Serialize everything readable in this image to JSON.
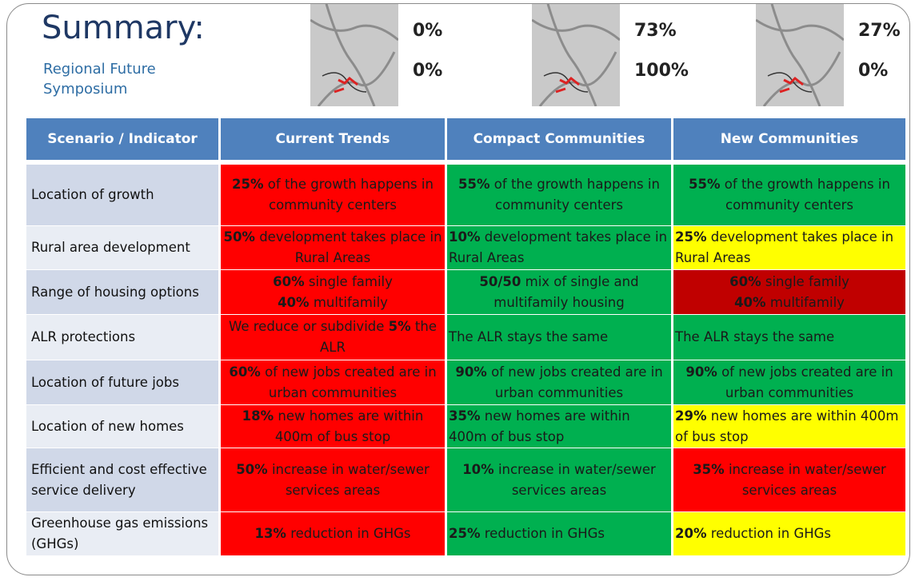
{
  "header": {
    "title": "Summary:",
    "subtitle": "Regional Future Symposium"
  },
  "maps": [
    {
      "top": "0%",
      "bottom": "0%"
    },
    {
      "top": "73%",
      "bottom": "100%"
    },
    {
      "top": "27%",
      "bottom": "0%"
    }
  ],
  "table": {
    "columns": [
      "Scenario / Indicator",
      "Current Trends",
      "Compact Communities",
      "New Communities"
    ],
    "rows": [
      {
        "label": "Location of growth",
        "cells": [
          {
            "color": "#ff0000",
            "align": "center",
            "parts": [
              {
                "text": "25%",
                "bold": true
              },
              {
                "text": " of the growth happens in community centers"
              }
            ]
          },
          {
            "color": "#00b050",
            "align": "center",
            "parts": [
              {
                "text": "55%",
                "bold": true
              },
              {
                "text": " of the growth happens in community centers"
              }
            ]
          },
          {
            "color": "#00b050",
            "align": "center",
            "parts": [
              {
                "text": "55%",
                "bold": true
              },
              {
                "text": " of the growth happens in community centers"
              }
            ]
          }
        ]
      },
      {
        "label": "Rural area development",
        "cells": [
          {
            "color": "#ff0000",
            "align": "center",
            "parts": [
              {
                "text": "50%",
                "bold": true
              },
              {
                "text": " development takes place in Rural Areas"
              }
            ]
          },
          {
            "color": "#00b050",
            "align": "left",
            "parts": [
              {
                "text": "10%",
                "bold": true
              },
              {
                "text": " development takes place in Rural Areas"
              }
            ]
          },
          {
            "color": "#ffff00",
            "align": "left",
            "parts": [
              {
                "text": "25%",
                "bold": true
              },
              {
                "text": " development takes place in Rural Areas"
              }
            ]
          }
        ]
      },
      {
        "label": "Range of housing options",
        "cells": [
          {
            "color": "#ff0000",
            "align": "center",
            "parts": [
              {
                "text": "60%",
                "bold": true
              },
              {
                "text": "  single family\n"
              },
              {
                "text": "40%",
                "bold": true
              },
              {
                "text": " multifamily"
              }
            ]
          },
          {
            "color": "#00b050",
            "align": "center",
            "parts": [
              {
                "text": "50/50",
                "bold": true
              },
              {
                "text": " mix of single and multifamily housing"
              }
            ]
          },
          {
            "color": "#c00000",
            "align": "center",
            "parts": [
              {
                "text": "60%",
                "bold": true
              },
              {
                "text": "  single family\n"
              },
              {
                "text": "40%",
                "bold": true
              },
              {
                "text": " multifamily"
              }
            ]
          }
        ]
      },
      {
        "label": "ALR protections",
        "cells": [
          {
            "color": "#ff0000",
            "align": "center",
            "parts": [
              {
                "text": "We reduce or subdivide "
              },
              {
                "text": "5%",
                "bold": true
              },
              {
                "text": " the ALR"
              }
            ]
          },
          {
            "color": "#00b050",
            "align": "left",
            "parts": [
              {
                "text": "The ALR stays the same"
              }
            ]
          },
          {
            "color": "#00b050",
            "align": "left",
            "parts": [
              {
                "text": "The ALR stays the same"
              }
            ]
          }
        ]
      },
      {
        "label": "Location of future jobs",
        "cells": [
          {
            "color": "#ff0000",
            "align": "center",
            "parts": [
              {
                "text": "60%",
                "bold": true
              },
              {
                "text": "  of new jobs created are in urban communities"
              }
            ]
          },
          {
            "color": "#00b050",
            "align": "center",
            "parts": [
              {
                "text": "90%",
                "bold": true
              },
              {
                "text": " of new jobs created are in urban communities"
              }
            ]
          },
          {
            "color": "#00b050",
            "align": "center",
            "parts": [
              {
                "text": "90%",
                "bold": true
              },
              {
                "text": "  of new jobs created are in urban communities"
              }
            ]
          }
        ]
      },
      {
        "label": "Location of new homes",
        "cells": [
          {
            "color": "#ff0000",
            "align": "center",
            "parts": [
              {
                "text": "18%",
                "bold": true
              },
              {
                "text": " new homes are within 400m of bus stop"
              }
            ]
          },
          {
            "color": "#00b050",
            "align": "left",
            "parts": [
              {
                "text": "35%",
                "bold": true
              },
              {
                "text": " new homes are within 400m of bus stop"
              }
            ]
          },
          {
            "color": "#ffff00",
            "align": "left",
            "parts": [
              {
                "text": "29%",
                "bold": true
              },
              {
                "text": " new homes are within 400m of bus stop"
              }
            ]
          }
        ]
      },
      {
        "label": "Efficient and cost effective service delivery",
        "cells": [
          {
            "color": "#ff0000",
            "align": "center",
            "parts": [
              {
                "text": "50%",
                "bold": true
              },
              {
                "text": "  increase in water/sewer services areas"
              }
            ]
          },
          {
            "color": "#00b050",
            "align": "center",
            "parts": [
              {
                "text": "10%",
                "bold": true
              },
              {
                "text": " increase in water/sewer services areas"
              }
            ]
          },
          {
            "color": "#ff0000",
            "align": "center",
            "parts": [
              {
                "text": "35%",
                "bold": true
              },
              {
                "text": "  increase in water/sewer services areas"
              }
            ]
          }
        ]
      },
      {
        "label": "Greenhouse gas emissions (GHGs)",
        "cells": [
          {
            "color": "#ff0000",
            "align": "center",
            "parts": [
              {
                "text": "13%",
                "bold": true
              },
              {
                "text": " reduction in GHGs"
              }
            ]
          },
          {
            "color": "#00b050",
            "align": "left",
            "parts": [
              {
                "text": "25%",
                "bold": true
              },
              {
                "text": " reduction in GHGs"
              }
            ]
          },
          {
            "color": "#ffff00",
            "align": "left",
            "parts": [
              {
                "text": "20%",
                "bold": true
              },
              {
                "text": " reduction in GHGs"
              }
            ]
          }
        ]
      }
    ]
  }
}
